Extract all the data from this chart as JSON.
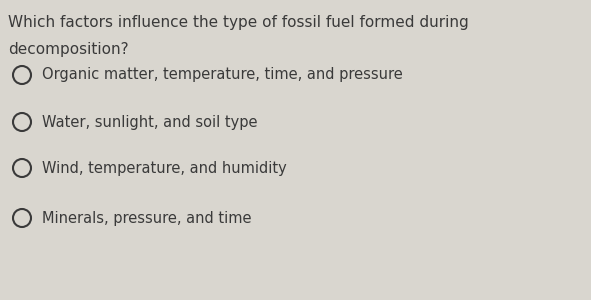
{
  "background_color": "#d9d6cf",
  "question_line1": "Which factors influence the type of fossil fuel formed during",
  "question_line2": "decomposition?",
  "options": [
    "Organic matter, temperature, time, and pressure",
    "Water, sunlight, and soil type",
    "Wind, temperature, and humidity",
    "Minerals, pressure, and time"
  ],
  "question_fontsize": 11.0,
  "option_fontsize": 10.5,
  "text_color": "#3a3a3a",
  "circle_color": "#3a3a3a",
  "fig_width": 5.91,
  "fig_height": 3.0
}
